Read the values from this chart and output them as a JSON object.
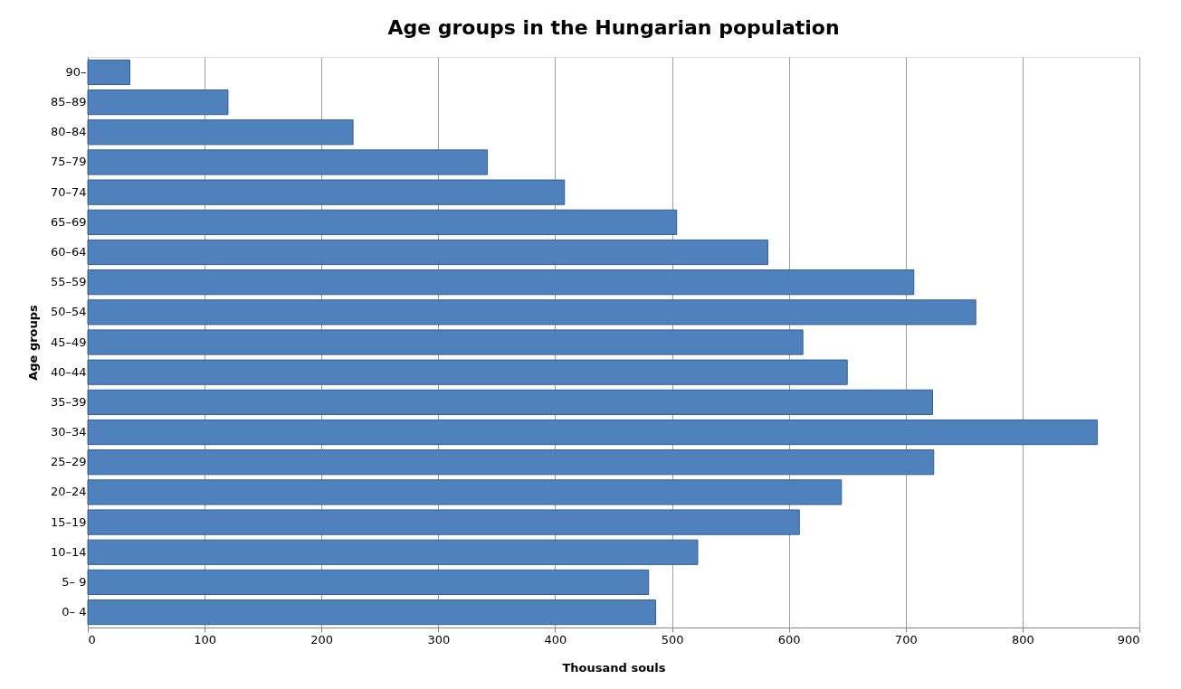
{
  "chart_data": {
    "type": "bar",
    "orientation": "horizontal",
    "title": "Age groups in the Hungarian population",
    "xlabel": "Thousand souls",
    "ylabel": "Age groups",
    "categories": [
      "90–",
      "85–89",
      "80–84",
      "75–79",
      "70–74",
      "65–69",
      "60–64",
      "55–59",
      "50–54",
      "45–49",
      "40–44",
      "35–39",
      "30–34",
      "25–29",
      "20–24",
      "15–19",
      "10–14",
      "5– 9",
      "0– 4"
    ],
    "values": [
      36,
      120,
      227,
      342,
      408,
      504,
      582,
      707,
      760,
      612,
      650,
      723,
      864,
      724,
      645,
      609,
      522,
      480,
      486
    ],
    "color": "#4f81bd",
    "xlim": [
      0,
      900
    ],
    "xticks": [
      0,
      100,
      200,
      300,
      400,
      500,
      600,
      700,
      800,
      900
    ],
    "grid": "x"
  }
}
